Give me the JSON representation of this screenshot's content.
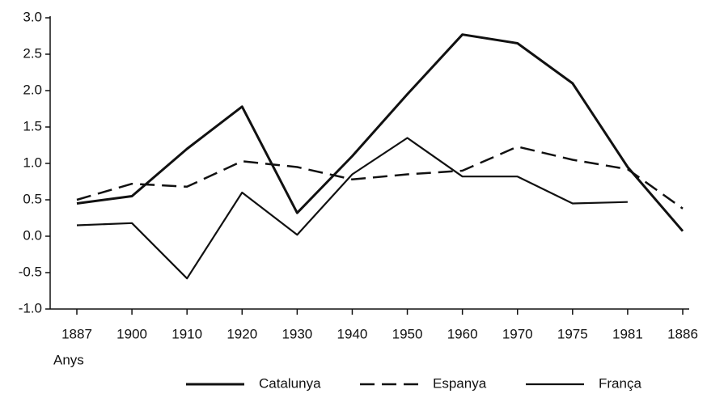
{
  "chart_data": {
    "type": "line",
    "x_label": "Anys",
    "categories": [
      "1887",
      "1900",
      "1910",
      "1920",
      "1930",
      "1940",
      "1950",
      "1960",
      "1970",
      "1975",
      "1981",
      "1886"
    ],
    "series": [
      {
        "name": "Catalunya",
        "color": "#111111",
        "dash": "solid",
        "values": [
          0.45,
          0.55,
          1.2,
          1.78,
          0.32,
          1.1,
          1.95,
          2.77,
          2.65,
          2.1,
          0.95,
          0.07
        ]
      },
      {
        "name": "Espanya",
        "color": "#111111",
        "dash": "dashed",
        "values": [
          0.5,
          0.72,
          0.68,
          1.03,
          0.95,
          0.78,
          0.85,
          0.9,
          1.23,
          1.05,
          0.92,
          0.38
        ]
      },
      {
        "name": "França",
        "color": "#111111",
        "dash": "solid",
        "values": [
          0.15,
          0.18,
          -0.58,
          0.6,
          0.02,
          0.85,
          1.35,
          0.82,
          0.82,
          0.45,
          0.47,
          null
        ]
      }
    ],
    "ylim": [
      -1,
      3
    ],
    "yticks": [
      {
        "value": -1,
        "label": "-1.0"
      },
      -0.5,
      {
        "value": 0,
        "label": "0.0"
      },
      0.5,
      {
        "value": 1,
        "label": "1.0"
      },
      1.5,
      {
        "value": 2,
        "label": "2.0"
      },
      2.5,
      {
        "value": 3,
        "label": "3.0"
      }
    ],
    "legend": "bottom",
    "grid": false
  }
}
